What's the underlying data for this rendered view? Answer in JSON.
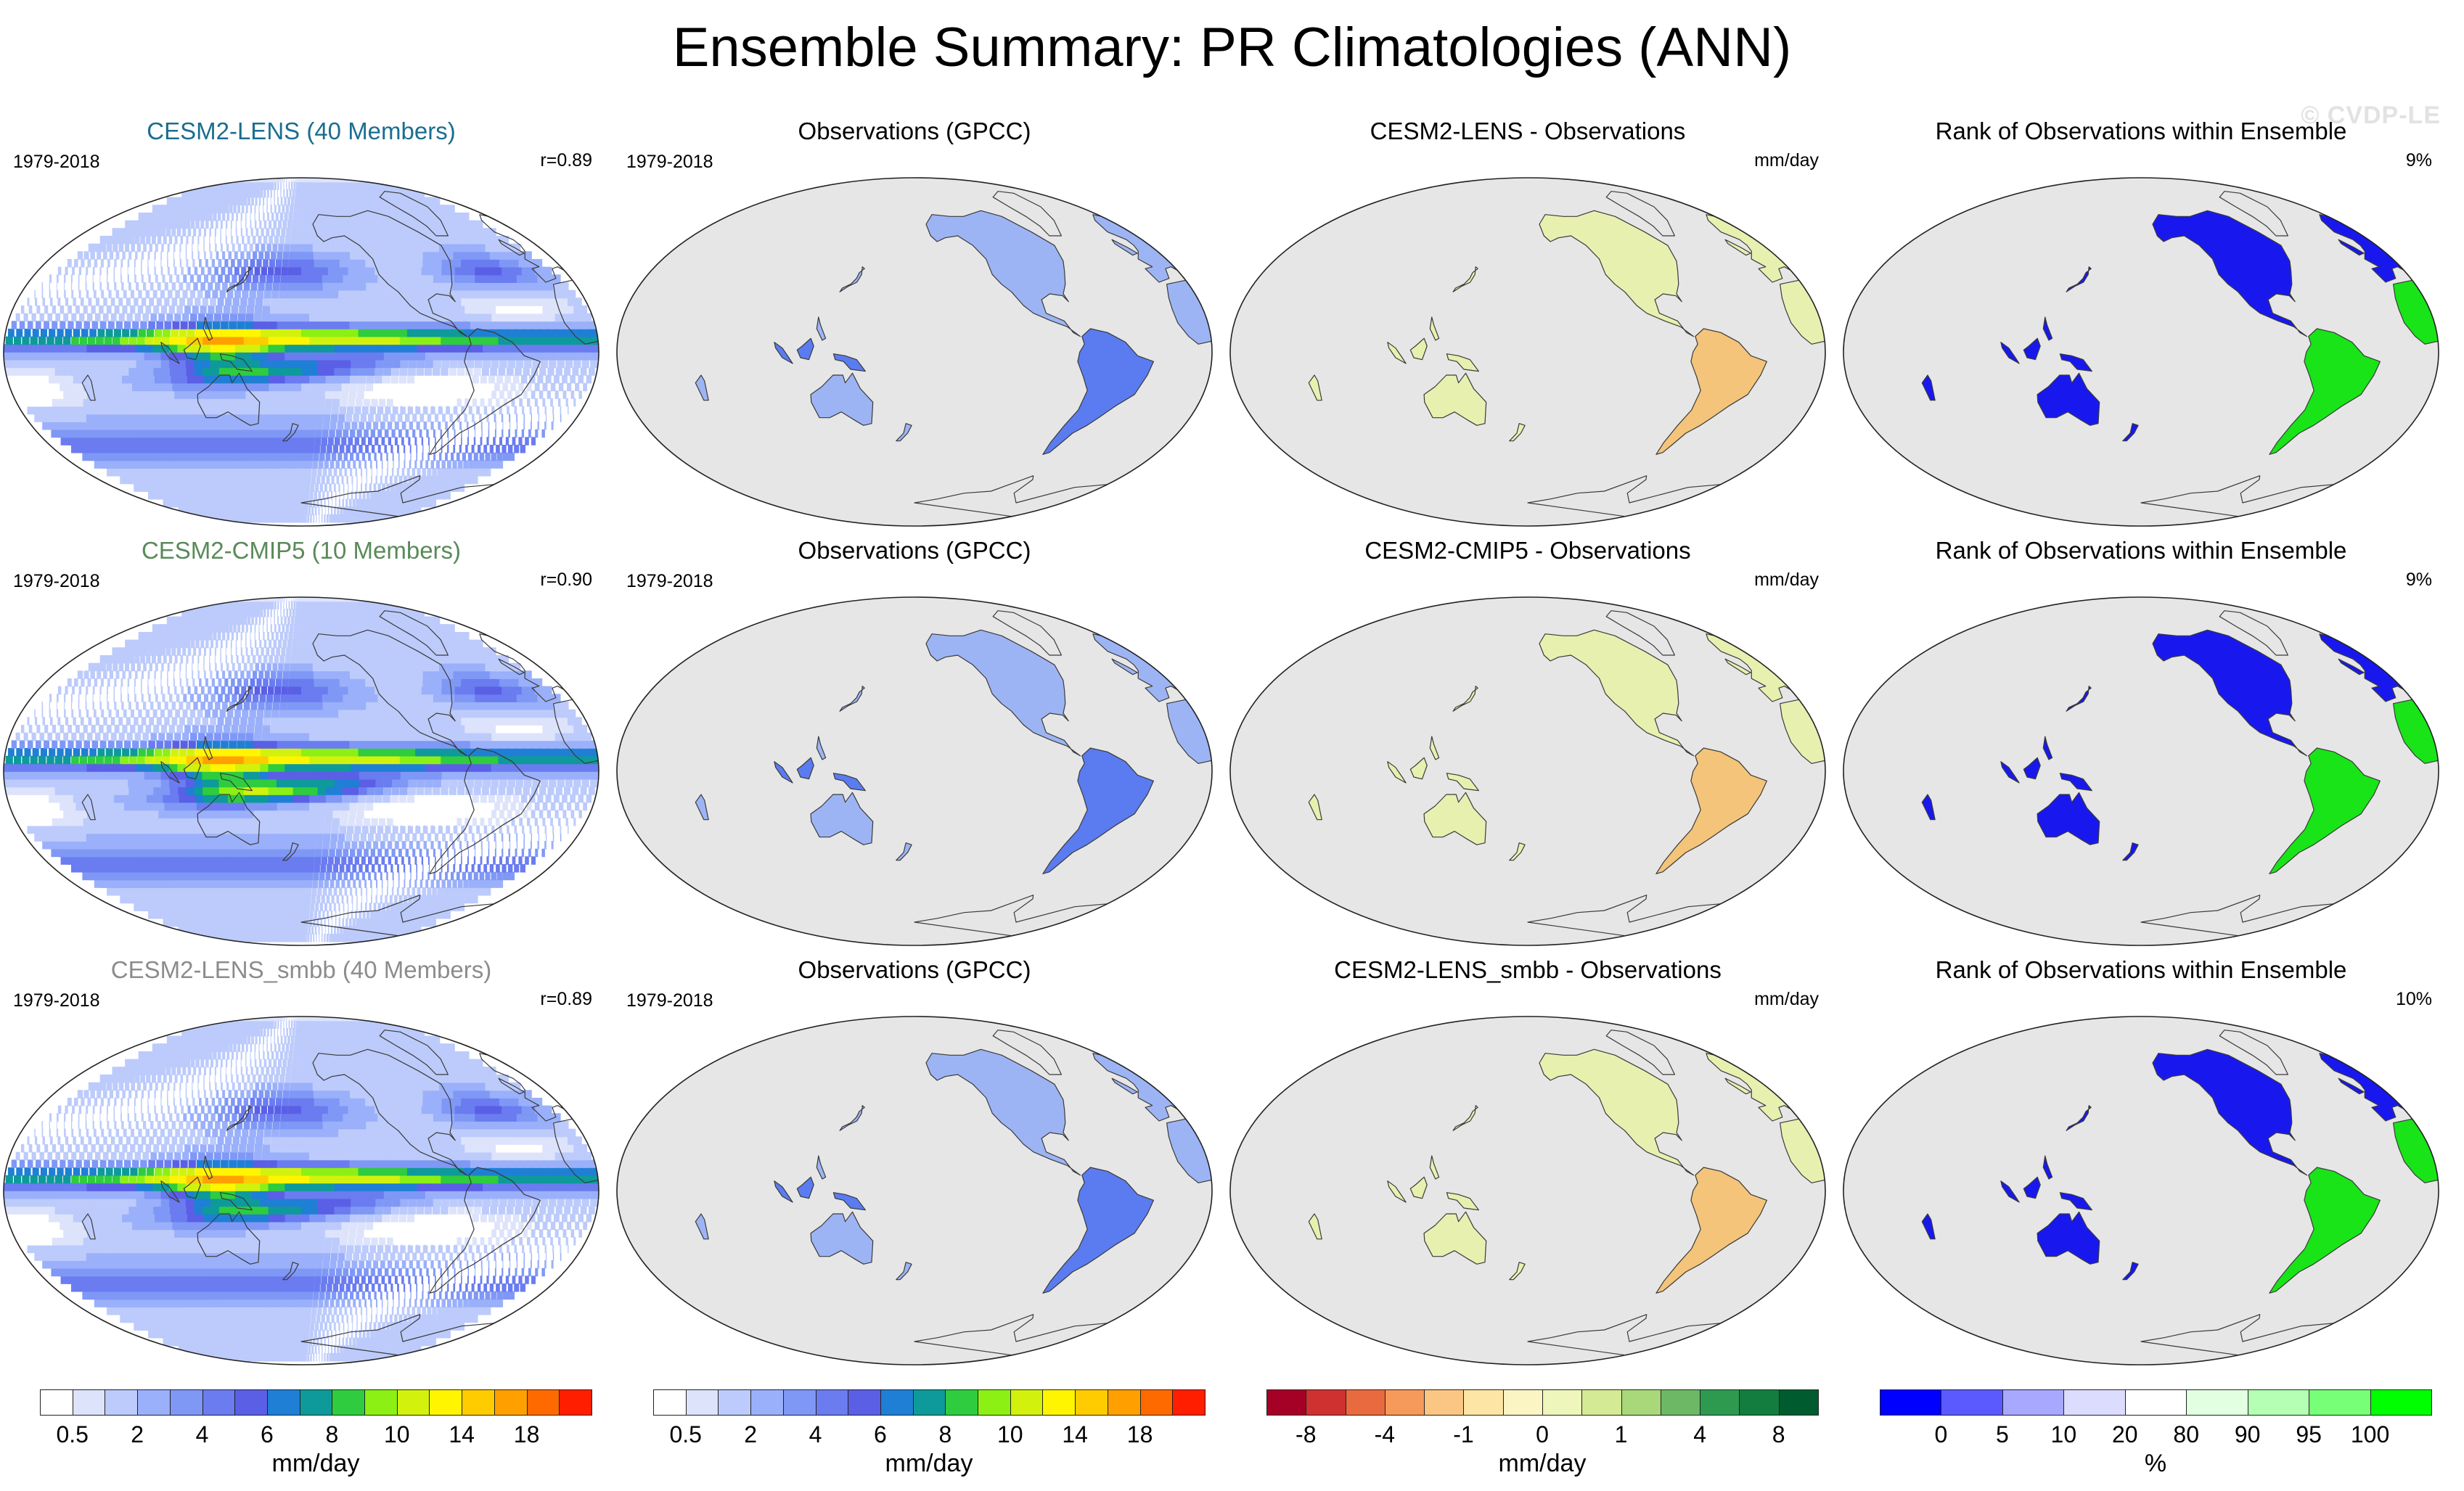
{
  "figure": {
    "title": "Ensemble Summary: PR Climatologies (ANN)",
    "watermark": "© CVDP-LE"
  },
  "colors": {
    "ocean_gray": "#e6e6e6",
    "coast": "#3a3a3a",
    "title_lens": "#1a6e8f",
    "title_cmip5": "#5a8a5a",
    "title_smbb": "#8c8c8c"
  },
  "chart_data": [
    {
      "type": "heatmap",
      "id": "p1",
      "row": 0,
      "col": 0,
      "kind": "model",
      "title": "CESM2-LENS (40 Members)",
      "title_color": "#1a6e8f",
      "period": "1979-2018",
      "stat": "r=0.89",
      "colorbar": "pr"
    },
    {
      "type": "heatmap",
      "id": "p2",
      "row": 0,
      "col": 1,
      "kind": "obs",
      "title": "Observations (GPCC)",
      "period": "1979-2018",
      "colorbar": "pr"
    },
    {
      "type": "heatmap",
      "id": "p3",
      "row": 0,
      "col": 2,
      "kind": "diff",
      "title": "CESM2-LENS - Observations",
      "units": "mm/day",
      "colorbar": "diff"
    },
    {
      "type": "heatmap",
      "id": "p4",
      "row": 0,
      "col": 3,
      "kind": "rank",
      "title": "Rank of Observations within Ensemble",
      "stat": "9%",
      "colorbar": "rank"
    },
    {
      "type": "heatmap",
      "id": "p5",
      "row": 1,
      "col": 0,
      "kind": "model",
      "title": "CESM2-CMIP5 (10 Members)",
      "title_color": "#5a8a5a",
      "period": "1979-2018",
      "stat": "r=0.90",
      "colorbar": "pr"
    },
    {
      "type": "heatmap",
      "id": "p6",
      "row": 1,
      "col": 1,
      "kind": "obs",
      "title": "Observations (GPCC)",
      "period": "1979-2018",
      "colorbar": "pr"
    },
    {
      "type": "heatmap",
      "id": "p7",
      "row": 1,
      "col": 2,
      "kind": "diff",
      "title": "CESM2-CMIP5 - Observations",
      "units": "mm/day",
      "colorbar": "diff"
    },
    {
      "type": "heatmap",
      "id": "p8",
      "row": 1,
      "col": 3,
      "kind": "rank",
      "title": "Rank of Observations within Ensemble",
      "stat": "9%",
      "colorbar": "rank"
    },
    {
      "type": "heatmap",
      "id": "p9",
      "row": 2,
      "col": 0,
      "kind": "model",
      "title": "CESM2-LENS_smbb (40 Members)",
      "title_color": "#8c8c8c",
      "period": "1979-2018",
      "stat": "r=0.89",
      "colorbar": "pr"
    },
    {
      "type": "heatmap",
      "id": "p10",
      "row": 2,
      "col": 1,
      "kind": "obs",
      "title": "Observations (GPCC)",
      "period": "1979-2018",
      "colorbar": "pr"
    },
    {
      "type": "heatmap",
      "id": "p11",
      "row": 2,
      "col": 2,
      "kind": "diff",
      "title": "CESM2-LENS_smbb - Observations",
      "units": "mm/day",
      "colorbar": "diff"
    },
    {
      "type": "heatmap",
      "id": "p12",
      "row": 2,
      "col": 3,
      "kind": "rank",
      "title": "Rank of Observations within Ensemble",
      "stat": "10%",
      "colorbar": "rank"
    }
  ],
  "colorbars": {
    "pr": {
      "units": "mm/day",
      "levels": [
        0.5,
        1,
        2,
        3,
        4,
        5,
        6,
        7,
        8,
        9,
        10,
        12,
        14,
        16,
        18
      ],
      "labels": [
        "0.5",
        "2",
        "4",
        "6",
        "8",
        "10",
        "14",
        "18"
      ],
      "label_levels": [
        0.5,
        2,
        4,
        6,
        8,
        10,
        14,
        18
      ],
      "colors": [
        "#ffffff",
        "#dde3fb",
        "#bccbfb",
        "#9bb0fa",
        "#7f98f6",
        "#6a7cf0",
        "#5a5fe6",
        "#1f7fd4",
        "#0e9a9a",
        "#2ecc3e",
        "#8cf014",
        "#d2f20e",
        "#fff500",
        "#ffcc00",
        "#ffa000",
        "#ff6a00",
        "#ff1e00"
      ]
    },
    "diff": {
      "units": "mm/day",
      "levels": [
        -8,
        -6,
        -4,
        -2,
        -1,
        -0.5,
        0,
        0.5,
        1,
        2,
        4,
        6,
        8
      ],
      "labels": [
        "-8",
        "-4",
        "-1",
        "0",
        "1",
        "4",
        "8"
      ],
      "label_levels": [
        -8,
        -4,
        -1,
        0,
        1,
        4,
        8
      ],
      "colors": [
        "#a50026",
        "#cf3030",
        "#ea6a3f",
        "#f59a5a",
        "#fbc684",
        "#fde5a6",
        "#fbf5c4",
        "#eef6bc",
        "#d4ea94",
        "#a8d87a",
        "#6db865",
        "#2e9a50",
        "#137c3f",
        "#005c2e"
      ]
    },
    "rank": {
      "units": "%",
      "levels": [
        0,
        5,
        10,
        20,
        80,
        90,
        95,
        100
      ],
      "labels": [
        "0",
        "5",
        "10",
        "20",
        "80",
        "90",
        "95",
        "100"
      ],
      "label_levels": [
        0,
        5,
        10,
        20,
        80,
        90,
        95,
        100
      ],
      "colors": [
        "#0000ff",
        "#5a5aff",
        "#a8a8ff",
        "#dcdcff",
        "#ffffff",
        "#e2ffe2",
        "#b4ffb4",
        "#78ff78",
        "#00ff00"
      ]
    }
  }
}
